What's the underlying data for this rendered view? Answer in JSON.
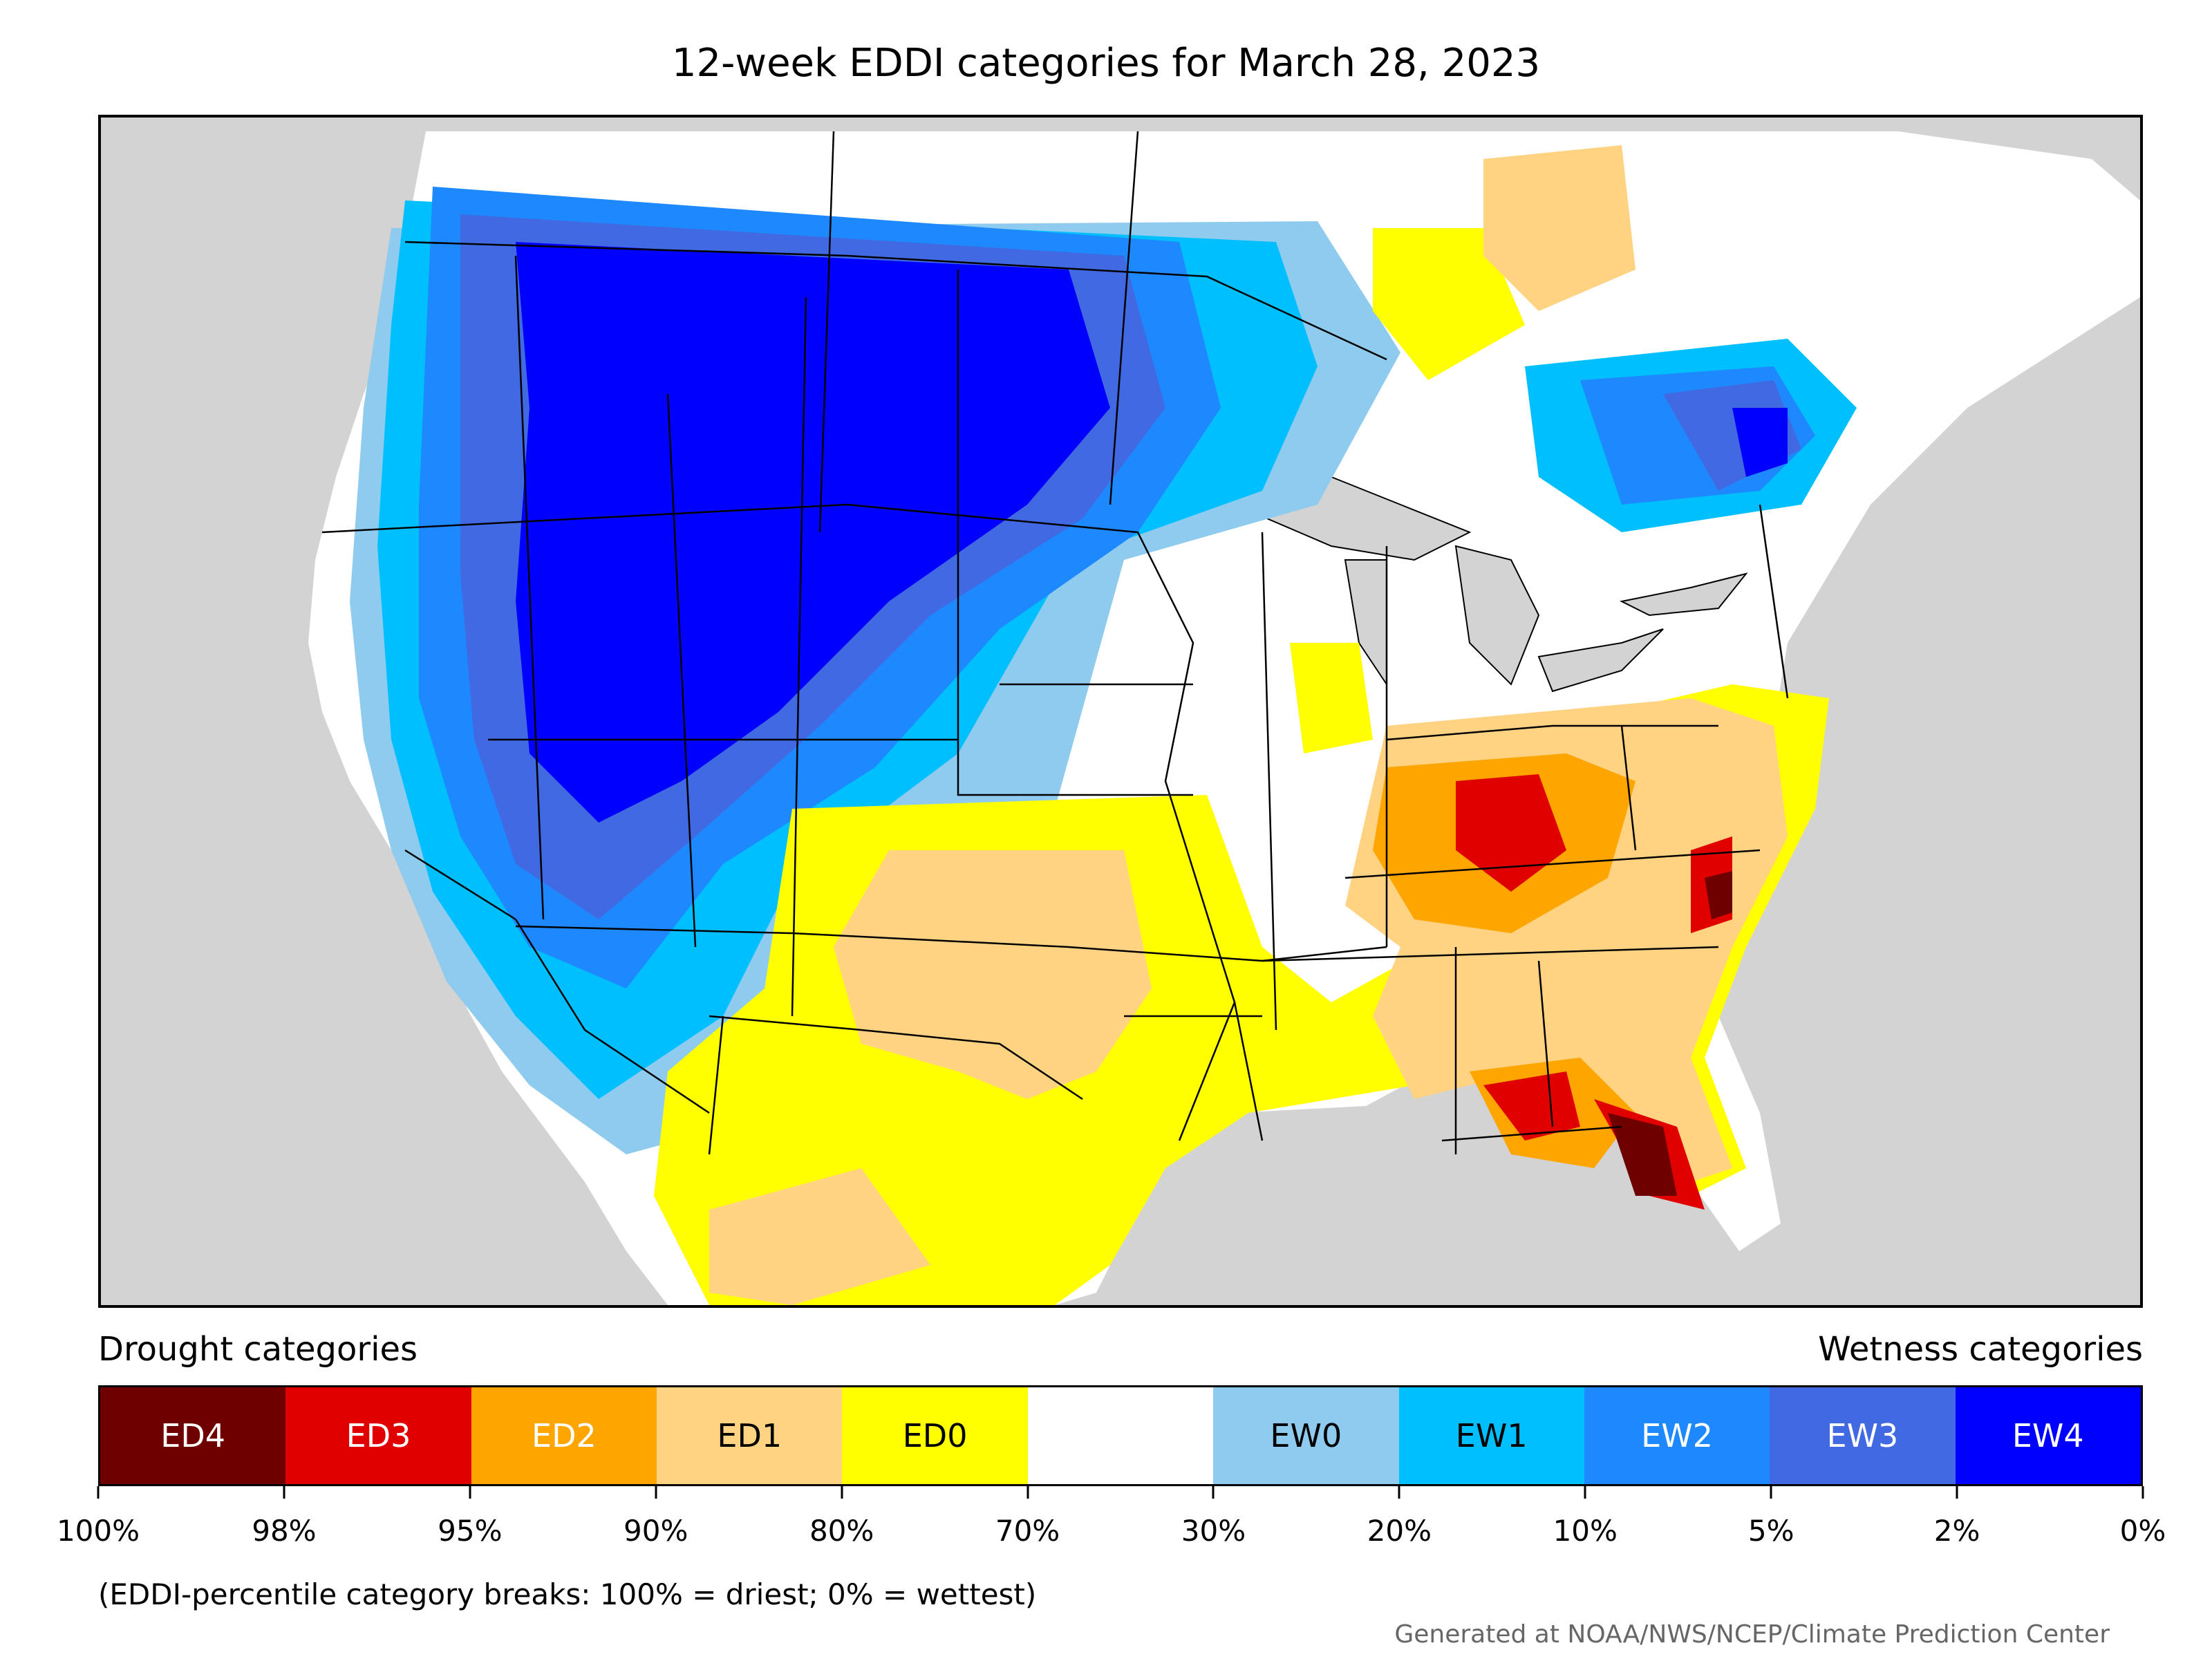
{
  "title": "12-week EDDI categories for March 28, 2023",
  "legend": {
    "drought_heading": "Drought categories",
    "wetness_heading": "Wetness categories",
    "categories": [
      {
        "label": "ED4",
        "color": "#6e0000",
        "text_color": "#ffffff"
      },
      {
        "label": "ED3",
        "color": "#e00000",
        "text_color": "#ffffff"
      },
      {
        "label": "ED2",
        "color": "#ffa500",
        "text_color": "#ffffff"
      },
      {
        "label": "ED1",
        "color": "#ffd382",
        "text_color": "#000000"
      },
      {
        "label": "ED0",
        "color": "#ffff00",
        "text_color": "#000000"
      },
      {
        "label": "",
        "color": "#ffffff",
        "text_color": "#000000"
      },
      {
        "label": "EW0",
        "color": "#8ecbee",
        "text_color": "#000000"
      },
      {
        "label": "EW1",
        "color": "#00bfff",
        "text_color": "#000000"
      },
      {
        "label": "EW2",
        "color": "#1e88ff",
        "text_color": "#ffffff"
      },
      {
        "label": "EW3",
        "color": "#4169e1",
        "text_color": "#ffffff"
      },
      {
        "label": "EW4",
        "color": "#0000ff",
        "text_color": "#ffffff"
      }
    ],
    "tick_labels": [
      "100%",
      "98%",
      "95%",
      "90%",
      "80%",
      "70%",
      "30%",
      "20%",
      "10%",
      "5%",
      "2%",
      "0%"
    ]
  },
  "note": "(EDDI-percentile category breaks: 100% = driest; 0% = wettest)",
  "credit": "Generated at NOAA/NWS/NCEP/Climate Prediction Center",
  "map": {
    "ocean_color": "#d3d3d3",
    "land_color": "#ffffff",
    "border_color": "#000000"
  }
}
